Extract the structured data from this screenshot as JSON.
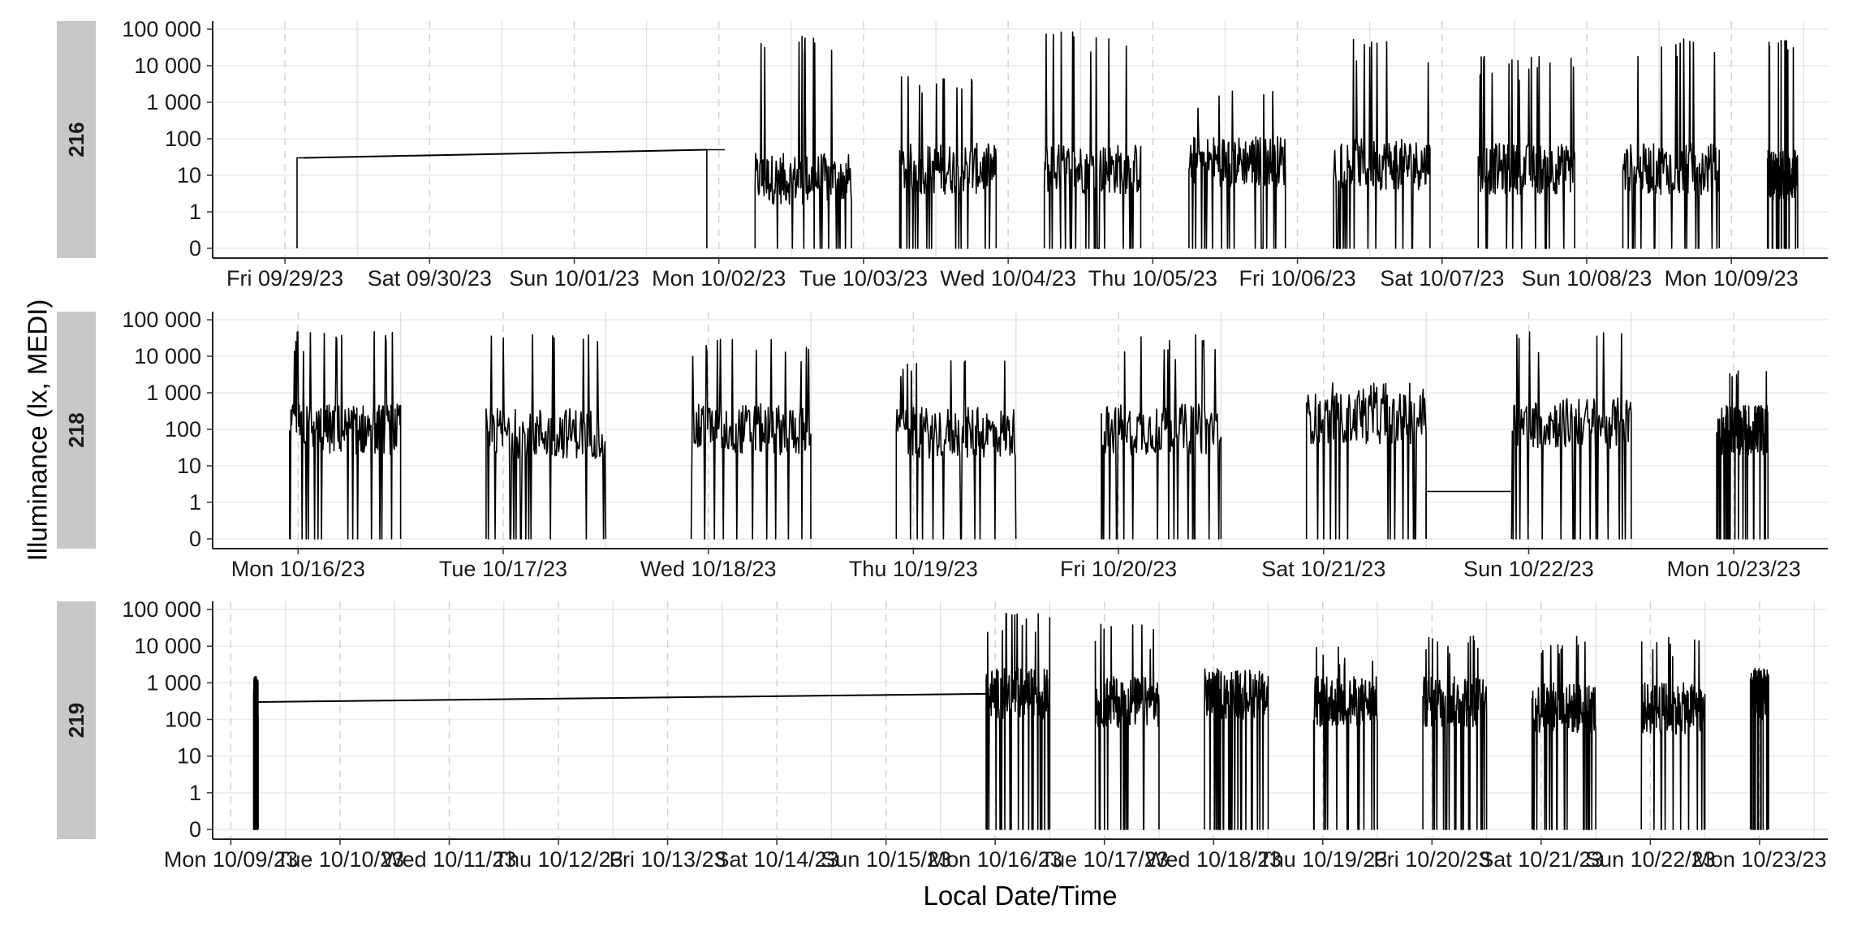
{
  "chart_data": {
    "type": "line",
    "xlabel": "Local Date/Time",
    "ylabel": "Illuminance (lx, MEDI)",
    "y_scale": "symlog",
    "y_ticks": [
      "0",
      "1",
      "10",
      "100",
      "1 000",
      "10 000",
      "100 000"
    ],
    "y_tick_values": [
      0,
      1,
      10,
      100,
      1000,
      10000,
      100000
    ],
    "grid": true,
    "line_color": "#000000",
    "facet_strip_color": "#c8c8c8",
    "panels": [
      {
        "facet": "216",
        "x_range": [
          "2023-09-28T12:00",
          "2023-10-09T16:00"
        ],
        "x_ticks": [
          {
            "date": "2023-09-29T00:00",
            "label": "Fri 09/29/23"
          },
          {
            "date": "2023-09-30T00:00",
            "label": "Sat 09/30/23"
          },
          {
            "date": "2023-10-01T00:00",
            "label": "Sun 10/01/23"
          },
          {
            "date": "2023-10-02T00:00",
            "label": "Mon 10/02/23"
          },
          {
            "date": "2023-10-03T00:00",
            "label": "Tue 10/03/23"
          },
          {
            "date": "2023-10-04T00:00",
            "label": "Wed 10/04/23"
          },
          {
            "date": "2023-10-05T00:00",
            "label": "Thu 10/05/23"
          },
          {
            "date": "2023-10-06T00:00",
            "label": "Fri 10/06/23"
          },
          {
            "date": "2023-10-07T00:00",
            "label": "Sat 10/07/23"
          },
          {
            "date": "2023-10-08T00:00",
            "label": "Sun 10/08/23"
          },
          {
            "date": "2023-10-09T00:00",
            "label": "Mon 10/09/23"
          }
        ],
        "gap": {
          "from": "2023-09-29T03:00",
          "to": "2023-10-01T22:00"
        },
        "series": [
          {
            "start": "2023-09-29T02:00",
            "end": "2023-09-29T03:00",
            "level": 30
          },
          {
            "start": "2023-10-01T22:00",
            "end": "2023-10-02T01:00",
            "level": 50
          },
          {
            "start": "2023-10-02T06:00",
            "end": "2023-10-02T22:00",
            "level": 8,
            "peak": 70000
          },
          {
            "start": "2023-10-03T06:00",
            "end": "2023-10-03T22:00",
            "level": 15,
            "peak": 5000
          },
          {
            "start": "2023-10-04T06:00",
            "end": "2023-10-04T22:00",
            "level": 15,
            "peak": 100000
          },
          {
            "start": "2023-10-05T06:00",
            "end": "2023-10-05T22:00",
            "level": 25,
            "peak": 3000
          },
          {
            "start": "2023-10-06T06:00",
            "end": "2023-10-06T22:00",
            "level": 20,
            "peak": 60000
          },
          {
            "start": "2023-10-07T06:00",
            "end": "2023-10-07T22:00",
            "level": 15,
            "peak": 20000
          },
          {
            "start": "2023-10-08T06:00",
            "end": "2023-10-08T22:00",
            "level": 15,
            "peak": 60000
          },
          {
            "start": "2023-10-09T06:00",
            "end": "2023-10-09T11:00",
            "level": 10,
            "peak": 50000
          }
        ]
      },
      {
        "facet": "218",
        "x_range": [
          "2023-10-15T14:00",
          "2023-10-23T11:00"
        ],
        "x_ticks": [
          {
            "date": "2023-10-16T00:00",
            "label": "Mon 10/16/23"
          },
          {
            "date": "2023-10-17T00:00",
            "label": "Tue 10/17/23"
          },
          {
            "date": "2023-10-18T00:00",
            "label": "Wed 10/18/23"
          },
          {
            "date": "2023-10-19T00:00",
            "label": "Thu 10/19/23"
          },
          {
            "date": "2023-10-20T00:00",
            "label": "Fri 10/20/23"
          },
          {
            "date": "2023-10-21T00:00",
            "label": "Sat 10/21/23"
          },
          {
            "date": "2023-10-22T00:00",
            "label": "Sun 10/22/23"
          },
          {
            "date": "2023-10-23T00:00",
            "label": "Mon 10/23/23"
          }
        ],
        "series": [
          {
            "start": "2023-10-15T23:00",
            "end": "2023-10-16T12:00",
            "level": 100,
            "peak": 50000
          },
          {
            "start": "2023-10-16T22:00",
            "end": "2023-10-17T12:00",
            "level": 80,
            "peak": 40000
          },
          {
            "start": "2023-10-17T22:00",
            "end": "2023-10-18T12:00",
            "level": 100,
            "peak": 30000
          },
          {
            "start": "2023-10-18T22:00",
            "end": "2023-10-19T12:00",
            "level": 80,
            "peak": 8000
          },
          {
            "start": "2023-10-19T22:00",
            "end": "2023-10-20T12:00",
            "level": 100,
            "peak": 40000
          },
          {
            "start": "2023-10-20T22:00",
            "end": "2023-10-21T12:00",
            "level": 200,
            "peak": 2000
          },
          {
            "start": "2023-10-21T12:00",
            "end": "2023-10-21T22:00",
            "level": 2
          },
          {
            "start": "2023-10-21T22:00",
            "end": "2023-10-22T12:00",
            "level": 150,
            "peak": 50000
          },
          {
            "start": "2023-10-22T22:00",
            "end": "2023-10-23T04:00",
            "level": 100,
            "peak": 4000
          }
        ]
      },
      {
        "facet": "219",
        "x_range": [
          "2023-10-08T20:00",
          "2023-10-23T15:00"
        ],
        "x_ticks": [
          {
            "date": "2023-10-09T00:00",
            "label": "Mon 10/09/23"
          },
          {
            "date": "2023-10-10T00:00",
            "label": "Tue 10/10/23"
          },
          {
            "date": "2023-10-11T00:00",
            "label": "Wed 10/11/23"
          },
          {
            "date": "2023-10-12T00:00",
            "label": "Thu 10/12/23"
          },
          {
            "date": "2023-10-13T00:00",
            "label": "Fri 10/13/23"
          },
          {
            "date": "2023-10-14T00:00",
            "label": "Sat 10/14/23"
          },
          {
            "date": "2023-10-15T00:00",
            "label": "Sun 10/15/23"
          },
          {
            "date": "2023-10-16T00:00",
            "label": "Mon 10/16/23"
          },
          {
            "date": "2023-10-17T00:00",
            "label": "Tue 10/17/23"
          },
          {
            "date": "2023-10-18T00:00",
            "label": "Wed 10/18/23"
          },
          {
            "date": "2023-10-19T00:00",
            "label": "Thu 10/19/23"
          },
          {
            "date": "2023-10-20T00:00",
            "label": "Fri 10/20/23"
          },
          {
            "date": "2023-10-21T00:00",
            "label": "Sat 10/21/23"
          },
          {
            "date": "2023-10-22T00:00",
            "label": "Sun 10/22/23"
          },
          {
            "date": "2023-10-23T00:00",
            "label": "Mon 10/23/23"
          }
        ],
        "gap": {
          "from": "2023-10-09T06:00",
          "to": "2023-10-15T22:00"
        },
        "series": [
          {
            "start": "2023-10-09T05:00",
            "end": "2023-10-09T06:00",
            "level": 300,
            "peak": 800
          },
          {
            "start": "2023-10-15T22:00",
            "end": "2023-10-16T12:00",
            "level": 500,
            "peak": 80000
          },
          {
            "start": "2023-10-16T22:00",
            "end": "2023-10-17T12:00",
            "level": 300,
            "peak": 40000
          },
          {
            "start": "2023-10-17T22:00",
            "end": "2023-10-18T12:00",
            "level": 500,
            "peak": 2000
          },
          {
            "start": "2023-10-18T22:00",
            "end": "2023-10-19T12:00",
            "level": 300,
            "peak": 10000
          },
          {
            "start": "2023-10-19T22:00",
            "end": "2023-10-20T12:00",
            "level": 300,
            "peak": 20000
          },
          {
            "start": "2023-10-20T22:00",
            "end": "2023-10-21T12:00",
            "level": 200,
            "peak": 20000
          },
          {
            "start": "2023-10-21T22:00",
            "end": "2023-10-22T12:00",
            "level": 200,
            "peak": 20000
          },
          {
            "start": "2023-10-22T22:00",
            "end": "2023-10-23T02:00",
            "level": 500,
            "peak": 2000
          }
        ]
      }
    ]
  }
}
